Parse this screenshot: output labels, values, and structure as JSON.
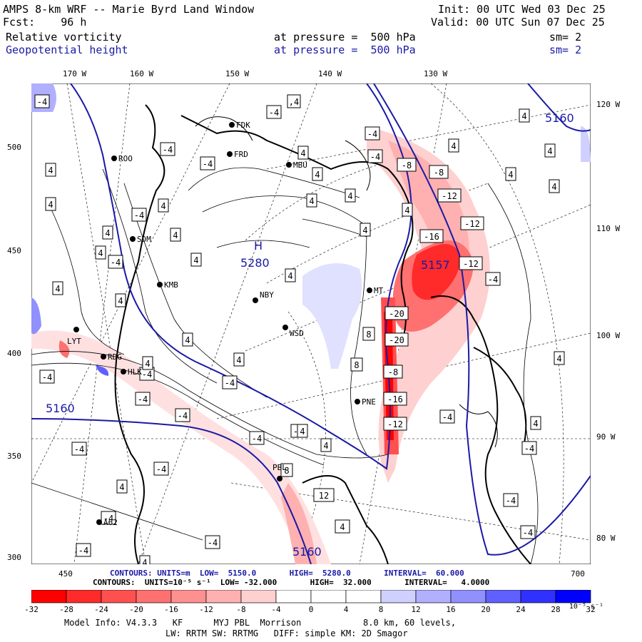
{
  "header": {
    "title": "AMPS 8-km WRF -- Marie Byrd Land Window",
    "fcst": "Fcst:    96 h",
    "init": "Init: 00 UTC Wed 03 Dec 25",
    "valid": "Valid: 00 UTC Sun 07 Dec 25",
    "field1": {
      "name": "Relative vorticity",
      "pressure": "at pressure =  500 hPa",
      "sm": "sm= 2",
      "color": "#000000"
    },
    "field2": {
      "name": "Geopotential height",
      "pressure": "at pressure =  500 hPa",
      "sm": "sm= 2",
      "color": "#1a1aa6"
    }
  },
  "axes": {
    "top_longitudes": [
      "170 W",
      "160 W",
      "150 W",
      "140 W",
      "130 W"
    ],
    "right_longitudes": [
      "120 W",
      "110 W",
      "100 W",
      "90 W",
      "80 W"
    ],
    "left_ticks": [
      "500",
      "450",
      "400",
      "350",
      "300"
    ],
    "bottom_ticks": [
      "450",
      "700"
    ]
  },
  "map": {
    "high": {
      "letter": "H",
      "value": "5280"
    },
    "low_value": "5157",
    "height_labels": [
      "5160",
      "5160",
      "5160"
    ],
    "stations": [
      "ROO",
      "FRD",
      "FDK",
      "MBU",
      "SDM",
      "KMB",
      "NBY",
      "WSD",
      "MT",
      "LYT",
      "RDG",
      "HLK",
      "PNE",
      "PBL",
      "A62"
    ],
    "vort_labels": [
      "4",
      "-4",
      "8",
      "-8",
      "-12",
      "-16",
      "-20"
    ]
  },
  "contours_line1": {
    "text": "CONTOURS: UNITS=m  LOW=  5150.0       HIGH=  5280.0       INTERVAL=  60.000",
    "color": "#1a1aa6"
  },
  "contours_line2": {
    "text": "CONTOURS:  UNITS=10⁻⁵ s⁻¹  LOW= -32.000       HIGH=  32.000       INTERVAL=   4.0000"
  },
  "colorbar": {
    "labels": [
      "-32",
      "-28",
      "-24",
      "-20",
      "-16",
      "-12",
      "-8",
      "-4",
      "0",
      "4",
      "8",
      "12",
      "16",
      "20",
      "24",
      "28",
      "32"
    ],
    "unit": "10⁻⁵ s⁻¹",
    "colors": [
      "#ff0000",
      "#ff2a2a",
      "#ff5050",
      "#ff7070",
      "#ff9090",
      "#ffb0b0",
      "#ffd0d0",
      "#ffffff",
      "#ffffff",
      "#ffffff",
      "#d0d0ff",
      "#b0b0ff",
      "#9090ff",
      "#6060ff",
      "#3030ff",
      "#0000ff"
    ]
  },
  "footer": {
    "line1": "Model Info: V4.3.3   KF      MYJ PBL  Morrison            8.0 km, 60 levels,",
    "line2": "LW: RRTM SW: RRTMG   DIFF: simple KM: 2D Smagor"
  }
}
